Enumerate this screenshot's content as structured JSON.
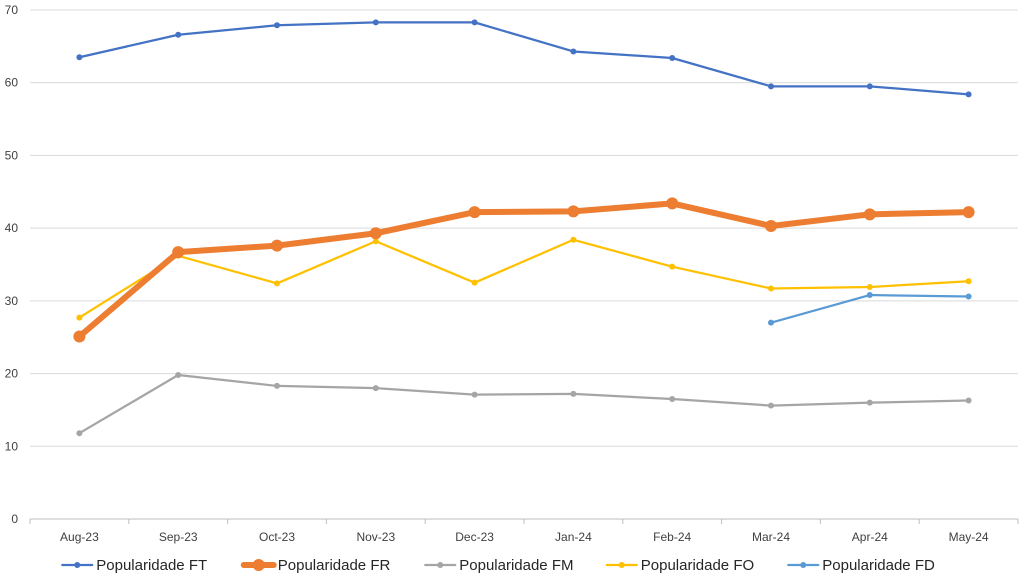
{
  "chart_data": {
    "type": "line",
    "categories": [
      "Aug-23",
      "Sep-23",
      "Oct-23",
      "Nov-23",
      "Dec-23",
      "Jan-24",
      "Feb-24",
      "Mar-24",
      "Apr-24",
      "May-24"
    ],
    "ylim": [
      0,
      70
    ],
    "yticks": [
      0,
      10,
      20,
      30,
      40,
      50,
      60,
      70
    ],
    "grid": true,
    "legend_position": "bottom",
    "series": [
      {
        "name": "Popularidade FT",
        "color": "#4472C4",
        "emphasis": false,
        "values": [
          63.5,
          66.6,
          67.9,
          68.3,
          68.3,
          64.3,
          63.4,
          59.5,
          59.5,
          58.4
        ]
      },
      {
        "name": "Popularidade FR",
        "color": "#ED7D31",
        "emphasis": true,
        "values": [
          25.1,
          36.7,
          37.6,
          39.3,
          42.2,
          42.3,
          43.4,
          40.3,
          41.9,
          42.2
        ]
      },
      {
        "name": "Popularidade FM",
        "color": "#A5A5A5",
        "emphasis": false,
        "values": [
          11.8,
          19.8,
          18.3,
          18.0,
          17.1,
          17.2,
          16.5,
          15.6,
          16.0,
          16.3
        ]
      },
      {
        "name": "Popularidade FO",
        "color": "#FFC000",
        "emphasis": false,
        "values": [
          27.7,
          36.2,
          32.4,
          38.2,
          32.5,
          38.4,
          34.7,
          31.7,
          31.9,
          32.7
        ]
      },
      {
        "name": "Popularidade FD",
        "color": "#5B9BD5",
        "emphasis": false,
        "values": [
          null,
          null,
          null,
          null,
          null,
          null,
          null,
          27.0,
          30.8,
          30.6
        ]
      }
    ]
  }
}
